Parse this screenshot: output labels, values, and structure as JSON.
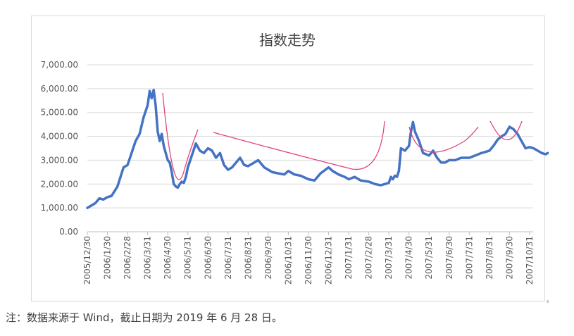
{
  "chart_data": {
    "type": "line",
    "title": "指数走势",
    "yticks": [
      "7,000.00",
      "6,000.00",
      "5,000.00",
      "4,000.00",
      "3,000.00",
      "2,000.00",
      "1,000.00",
      "0.00"
    ],
    "ylim": [
      0,
      7000
    ],
    "categories": [
      "2005/12/30",
      "2006/1/30",
      "2006/2/28",
      "2006/3/31",
      "2006/4/30",
      "2006/5/31",
      "2006/6/30",
      "2006/7/31",
      "2006/8/31",
      "2006/9/30",
      "2006/10/31",
      "2006/11/30",
      "2006/12/31",
      "2007/1/31",
      "2007/2/28",
      "2007/3/31",
      "2007/4/30",
      "2007/5/31",
      "2007/6/30",
      "2007/7/31",
      "2007/8/31",
      "2007/9/30",
      "2007/10/31"
    ],
    "grid": true,
    "legend": "none",
    "series": [
      {
        "color": "#4472c4",
        "x": [
          0,
          0.2,
          0.4,
          0.6,
          0.8,
          1.0,
          1.2,
          1.5,
          1.8,
          2.0,
          2.2,
          2.4,
          2.6,
          2.8,
          3.0,
          3.1,
          3.2,
          3.3,
          3.4,
          3.5,
          3.6,
          3.7,
          3.8,
          3.9,
          4.0,
          4.1,
          4.2,
          4.3,
          4.4,
          4.5,
          4.6,
          4.7,
          4.8,
          4.9,
          5.0,
          5.2,
          5.4,
          5.6,
          5.8,
          6.0,
          6.2,
          6.4,
          6.6,
          6.8,
          7.0,
          7.2,
          7.4,
          7.6,
          7.8,
          8.0,
          8.2,
          8.5,
          8.8,
          9.0,
          9.2,
          9.5,
          9.8,
          10.0,
          10.3,
          10.6,
          11.0,
          11.3,
          11.6,
          12.0,
          12.2,
          12.5,
          12.8,
          13.0,
          13.3,
          13.6,
          14.0,
          14.3,
          14.6,
          14.8,
          15.0,
          15.1,
          15.2,
          15.3,
          15.4,
          15.5,
          15.6,
          15.8,
          16.0,
          16.1,
          16.2,
          16.3,
          16.5,
          16.7,
          17.0,
          17.2,
          17.4,
          17.6,
          17.8,
          18.0,
          18.3,
          18.6,
          19.0,
          19.3,
          19.6,
          20.0,
          20.2,
          20.4,
          20.6,
          20.8,
          21.0,
          21.2,
          21.4,
          21.6,
          21.8,
          22.0,
          22.2,
          22.4,
          22.6,
          22.8,
          22.9
        ],
        "values": [
          1000,
          1100,
          1200,
          1400,
          1350,
          1450,
          1500,
          1900,
          2700,
          2800,
          3300,
          3800,
          4100,
          4800,
          5300,
          5900,
          5600,
          5950,
          5300,
          4200,
          3800,
          4100,
          3600,
          3300,
          3000,
          2900,
          2500,
          2000,
          1900,
          1850,
          2000,
          2100,
          2050,
          2300,
          2700,
          3200,
          3700,
          3400,
          3300,
          3500,
          3400,
          3100,
          3300,
          2800,
          2600,
          2700,
          2900,
          3100,
          2800,
          2750,
          2850,
          3000,
          2700,
          2600,
          2500,
          2450,
          2400,
          2550,
          2400,
          2350,
          2200,
          2150,
          2450,
          2700,
          2550,
          2400,
          2300,
          2200,
          2300,
          2150,
          2100,
          2000,
          1950,
          2000,
          2050,
          2300,
          2200,
          2350,
          2300,
          2550,
          3500,
          3400,
          3600,
          4200,
          4600,
          4200,
          3800,
          3300,
          3200,
          3400,
          3100,
          2900,
          2900,
          3000,
          3000,
          3100,
          3100,
          3200,
          3300,
          3400,
          3600,
          3850,
          4000,
          4100,
          4400,
          4300,
          4100,
          3800,
          3500,
          3550,
          3500,
          3400,
          3300,
          3250,
          3300
        ]
      }
    ]
  },
  "note": "注：数据来源于 Wind，截止日期为 2019 年 6 月 28 日。"
}
